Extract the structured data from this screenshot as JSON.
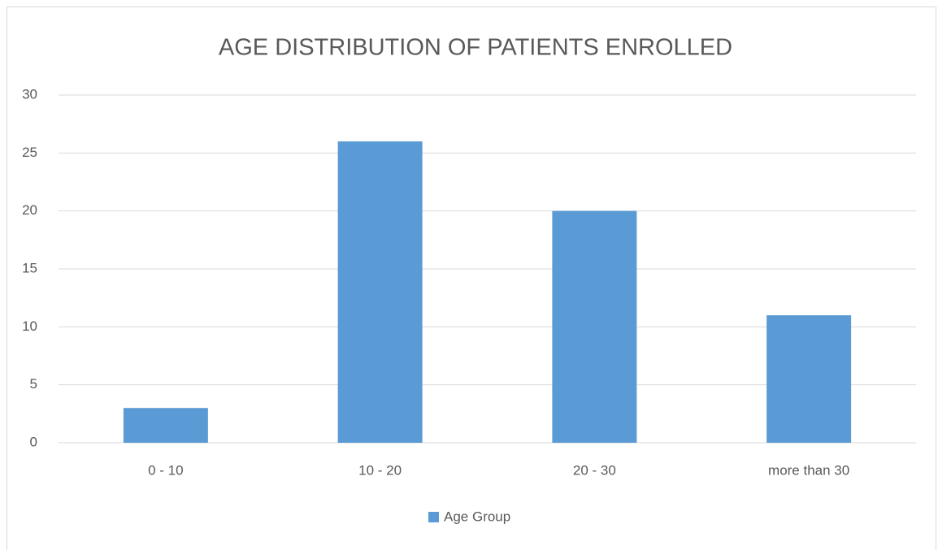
{
  "chart_data": {
    "type": "bar",
    "title": "AGE DISTRIBUTION OF PATIENTS ENROLLED",
    "categories": [
      "0 - 10",
      "10 - 20",
      "20 - 30",
      "more than 30"
    ],
    "series": [
      {
        "name": "Age Group",
        "color": "#5b9bd5",
        "values": [
          3,
          26,
          20,
          11
        ]
      }
    ],
    "ylim": [
      0,
      30
    ],
    "yticks": [
      0,
      5,
      10,
      15,
      20,
      25,
      30
    ],
    "grid": true,
    "legend": "bottom"
  }
}
